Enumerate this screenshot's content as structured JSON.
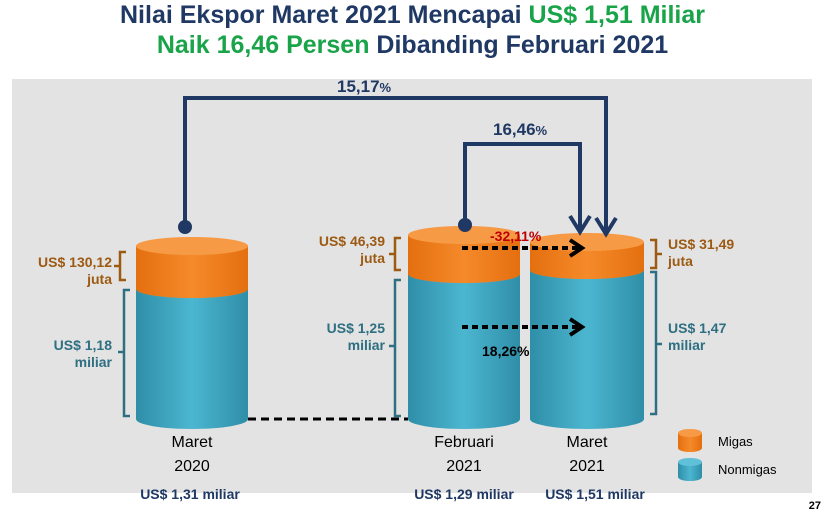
{
  "title": {
    "line1_prefix": "Nilai Ekspor Maret 2021 Mencapai ",
    "line1_highlight": "US$ 1,51 Miliar",
    "line2_highlight": "Naik 16,46 Persen",
    "line2_suffix": " Dibanding Februari 2021"
  },
  "chart_data": {
    "type": "bar",
    "categories": [
      "Maret 2020",
      "Februari 2021",
      "Maret 2021"
    ],
    "series": [
      {
        "name": "Migas",
        "values": [
          130.12,
          46.39,
          31.49
        ],
        "unit": "juta US$",
        "labels": [
          "US$ 130,12 juta",
          "US$ 46,39 juta",
          "US$ 31,49 juta"
        ]
      },
      {
        "name": "Nonmigas",
        "values": [
          1.18,
          1.25,
          1.47
        ],
        "unit": "miliar US$",
        "labels": [
          "US$ 1,18 miliar",
          "US$ 1,25 miliar",
          "US$ 1,47 miliar"
        ]
      }
    ],
    "totals": [
      "US$ 1,31 miliar",
      "US$ 1,29 miliar",
      "US$ 1,51 miliar"
    ],
    "category_lines": [
      [
        "Maret",
        "2020"
      ],
      [
        "Februari",
        "2021"
      ],
      [
        "Maret",
        "2021"
      ]
    ],
    "annotations": {
      "yoy_total_change": "15,17",
      "mom_total_change": "16,46",
      "migas_change": "-32,11%",
      "nonmigas_change": "18,26%",
      "pct_suffix": "%"
    },
    "legend": [
      "Migas",
      "Nonmigas"
    ],
    "colors": {
      "migas": "#f07d1a",
      "nonmigas": "#3ea6c2",
      "arrow": "#1f3864"
    }
  },
  "page_number": "27"
}
